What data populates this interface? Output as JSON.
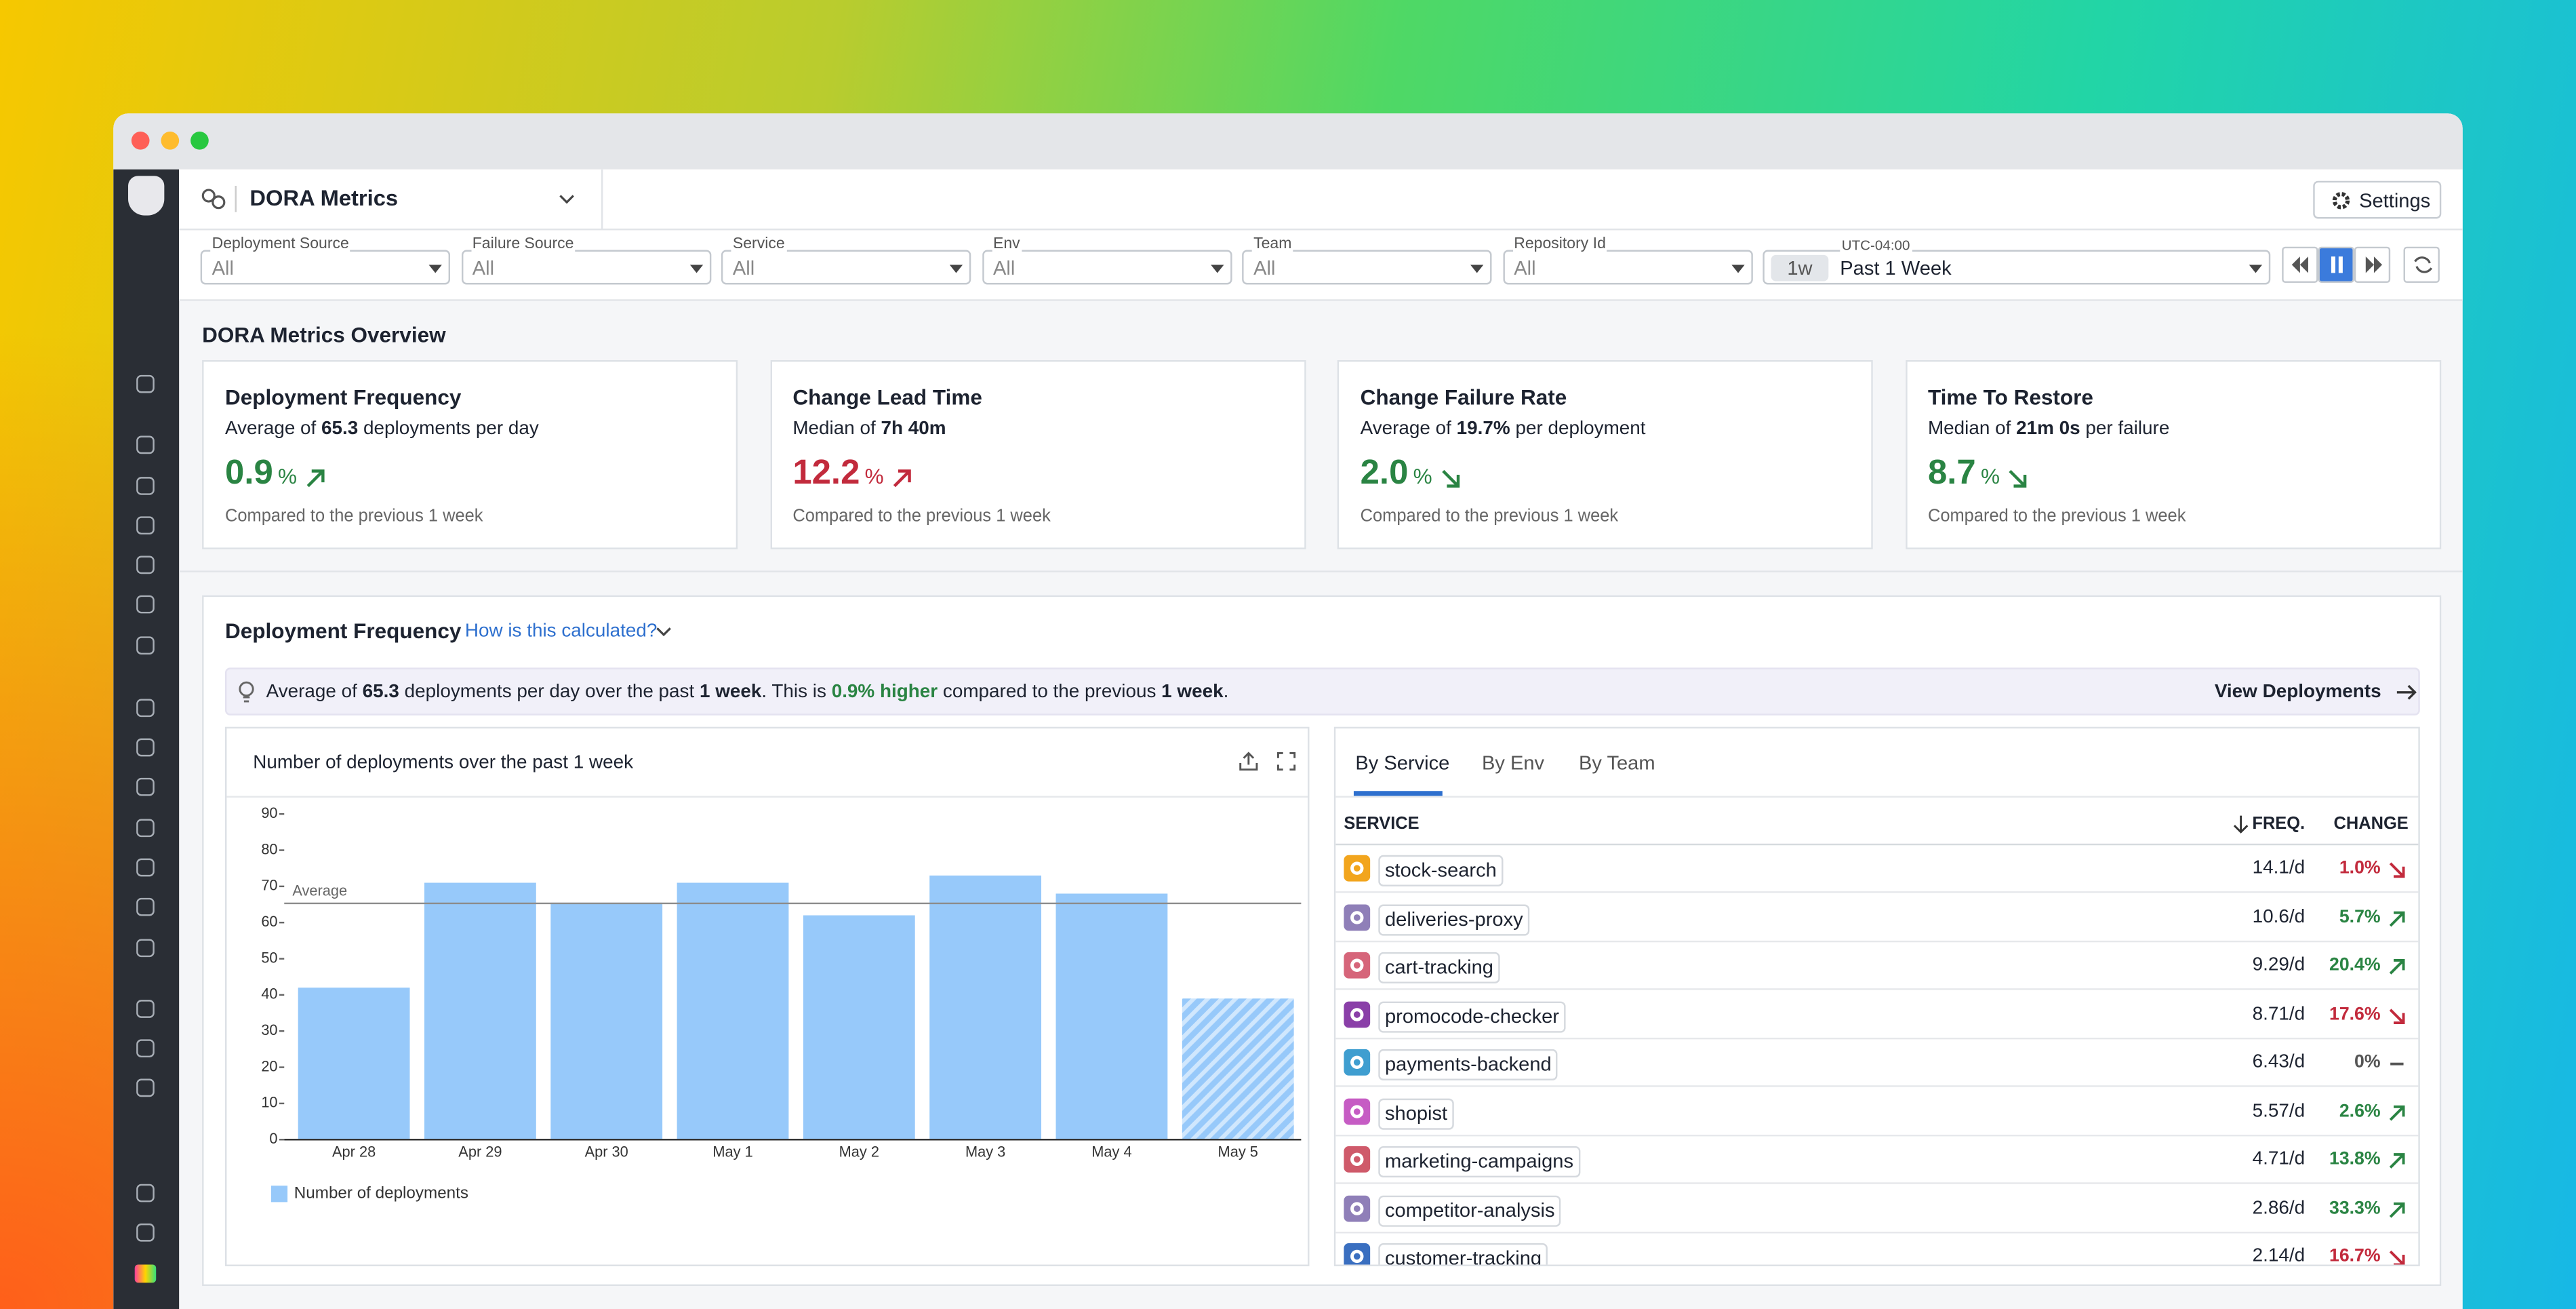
{
  "header": {
    "app_title": "DORA Metrics",
    "settings": "Settings"
  },
  "filters": [
    {
      "label": "Deployment Source",
      "value": "All"
    },
    {
      "label": "Failure Source",
      "value": "All"
    },
    {
      "label": "Service",
      "value": "All"
    },
    {
      "label": "Env",
      "value": "All"
    },
    {
      "label": "Team",
      "value": "All"
    },
    {
      "label": "Repository Id",
      "value": "All"
    }
  ],
  "time_picker": {
    "timezone": "UTC-04:00",
    "badge": "1w",
    "range": "Past 1 Week"
  },
  "overview": {
    "title": "DORA Metrics Overview",
    "cards": [
      {
        "title": "Deployment Frequency",
        "summary": [
          {
            "text": "Average of "
          },
          {
            "text": "65.3",
            "bold": true
          },
          {
            "text": " deployments per day"
          }
        ],
        "value": "0.9",
        "unit": "%",
        "trend": "up",
        "color": "#2a8443",
        "footer": "Compared to the previous 1 week"
      },
      {
        "title": "Change Lead Time",
        "summary": [
          {
            "text": "Median of "
          },
          {
            "text": "7h 40m",
            "bold": true
          }
        ],
        "value": "12.2",
        "unit": "%",
        "trend": "up",
        "color": "#c22a3c",
        "footer": "Compared to the previous 1 week"
      },
      {
        "title": "Change Failure Rate",
        "summary": [
          {
            "text": "Average of "
          },
          {
            "text": "19.7%",
            "bold": true
          },
          {
            "text": " per deployment"
          }
        ],
        "value": "2.0",
        "unit": "%",
        "trend": "down",
        "color": "#2a8443",
        "footer": "Compared to the previous 1 week"
      },
      {
        "title": "Time To Restore",
        "summary": [
          {
            "text": "Median of "
          },
          {
            "text": "21m 0s",
            "bold": true
          },
          {
            "text": " per failure"
          }
        ],
        "value": "8.7",
        "unit": "%",
        "trend": "down",
        "color": "#2a8443",
        "footer": "Compared to the previous 1 week"
      }
    ]
  },
  "section": {
    "title": "Deployment Frequency",
    "help_link": "How is this calculated?",
    "info": [
      {
        "text": "Average of "
      },
      {
        "text": "65.3",
        "bold": true
      },
      {
        "text": " deployments per day over the past "
      },
      {
        "text": "1 week",
        "bold": true
      },
      {
        "text": ". This is "
      },
      {
        "text": "0.9% higher",
        "bold": true,
        "color": "#2a8443"
      },
      {
        "text": " compared to the previous "
      },
      {
        "text": "1 week",
        "bold": true
      },
      {
        "text": "."
      }
    ],
    "action": "View Deployments"
  },
  "chart_data": {
    "type": "bar",
    "title": "Number of deployments over the past 1 week",
    "categories": [
      "Apr 28",
      "Apr 29",
      "Apr 30",
      "May 1",
      "May 2",
      "May 3",
      "May 4",
      "May 5"
    ],
    "series": [
      {
        "name": "Number of deployments",
        "color": "#97c9fa",
        "values": [
          42,
          71,
          65.5,
          71,
          62,
          73,
          68,
          39
        ]
      }
    ],
    "ylim": [
      0,
      90
    ],
    "yticks": [
      0,
      10,
      20,
      30,
      40,
      50,
      60,
      70,
      80,
      90
    ],
    "average": {
      "label": "Average",
      "value": 65.3
    },
    "hatched_last": true
  },
  "table": {
    "tabs": [
      "By Service",
      "By Env",
      "By Team"
    ],
    "active_tab": 0,
    "columns": [
      "SERVICE",
      "FREQ.",
      "CHANGE"
    ],
    "rows": [
      {
        "service": "stock-search",
        "icon_color": "#f2a51d",
        "freq": "14.1/d",
        "change": "1.0%",
        "trend": "down"
      },
      {
        "service": "deliveries-proxy",
        "icon_color": "#8f7fb8",
        "freq": "10.6/d",
        "change": "5.7%",
        "trend": "up"
      },
      {
        "service": "cart-tracking",
        "icon_color": "#d6657a",
        "freq": "9.29/d",
        "change": "20.4%",
        "trend": "up"
      },
      {
        "service": "promocode-checker",
        "icon_color": "#8a3fa8",
        "freq": "8.71/d",
        "change": "17.6%",
        "trend": "down"
      },
      {
        "service": "payments-backend",
        "icon_color": "#3f9ed0",
        "freq": "6.43/d",
        "change": "0%",
        "trend": "flat"
      },
      {
        "service": "shopist",
        "icon_color": "#c65cc4",
        "freq": "5.57/d",
        "change": "2.6%",
        "trend": "up"
      },
      {
        "service": "marketing-campaigns",
        "icon_color": "#cf5a6a",
        "freq": "4.71/d",
        "change": "13.8%",
        "trend": "up"
      },
      {
        "service": "competitor-analysis",
        "icon_color": "#8f7fb8",
        "freq": "2.86/d",
        "change": "33.3%",
        "trend": "up"
      },
      {
        "service": "customer-tracking",
        "icon_color": "#3a6fc0",
        "freq": "2.14/d",
        "change": "16.7%",
        "trend": "down"
      }
    ]
  }
}
